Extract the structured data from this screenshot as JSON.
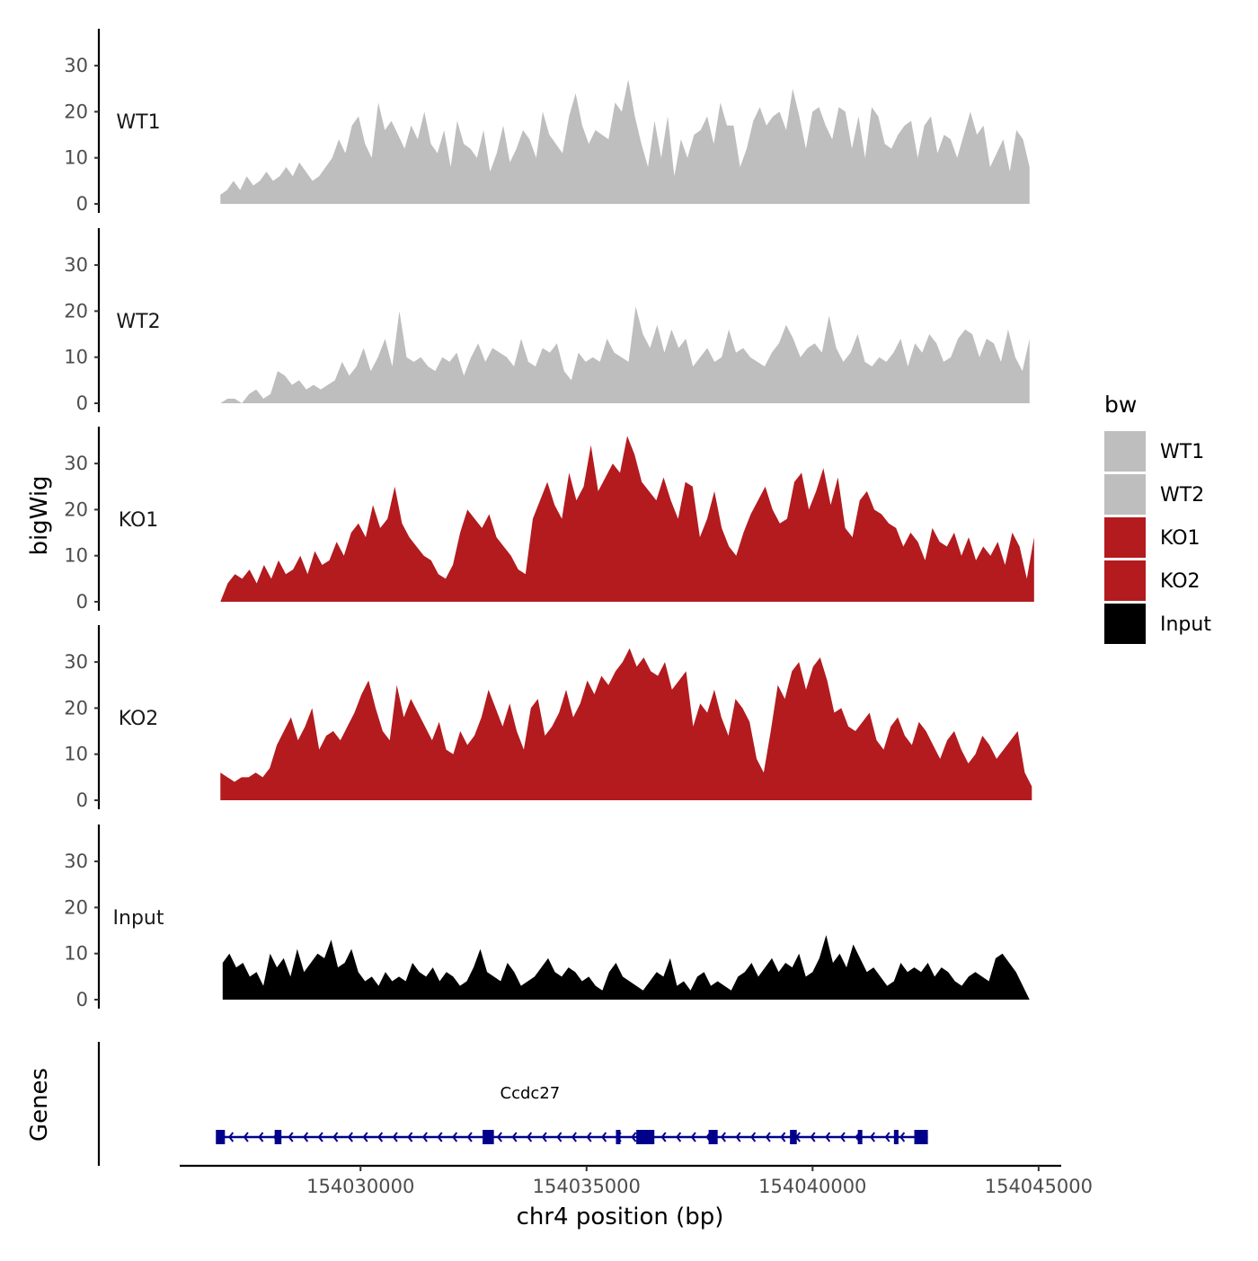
{
  "chart_data": {
    "type": "area",
    "title": "",
    "xlabel": "chr4 position (bp)",
    "ylabel": "bigWig",
    "genes_label": "Genes",
    "xlim": [
      154026000,
      154045500
    ],
    "ylim": [
      0,
      38
    ],
    "y_ticks": [
      "0",
      "10",
      "20",
      "30"
    ],
    "x_ticks": [
      {
        "value": 154030000,
        "label": "154030000"
      },
      {
        "value": 154035000,
        "label": "154035000"
      },
      {
        "value": 154040000,
        "label": "154040000"
      },
      {
        "value": 154045000,
        "label": "154045000"
      }
    ],
    "legend": {
      "title": "bw",
      "position": "right",
      "entries": [
        {
          "label": "WT1",
          "color": "#bebebe"
        },
        {
          "label": "WT2",
          "color": "#bebebe"
        },
        {
          "label": "KO1",
          "color": "#b31b1f"
        },
        {
          "label": "KO2",
          "color": "#b31b1f"
        },
        {
          "label": "Input",
          "color": "#000000"
        }
      ]
    },
    "tracks": [
      {
        "name": "WT1",
        "color": "#bebebe",
        "x_start": 154026900,
        "x_end": 154044800,
        "values": [
          2,
          3,
          5,
          3,
          6,
          4,
          5,
          7,
          5,
          6,
          8,
          6,
          9,
          7,
          5,
          6,
          8,
          10,
          14,
          11,
          17,
          19,
          13,
          10,
          22,
          16,
          18,
          15,
          12,
          17,
          14,
          20,
          13,
          11,
          16,
          8,
          18,
          13,
          12,
          10,
          16,
          7,
          11,
          17,
          9,
          12,
          16,
          14,
          10,
          20,
          15,
          13,
          11,
          19,
          24,
          17,
          13,
          16,
          15,
          14,
          22,
          20,
          27,
          19,
          13,
          8,
          18,
          10,
          19,
          6,
          14,
          10,
          15,
          16,
          19,
          13,
          22,
          17,
          17,
          8,
          12,
          18,
          21,
          17,
          19,
          20,
          16,
          25,
          19,
          12,
          20,
          21,
          17,
          14,
          21,
          20,
          12,
          19,
          10,
          21,
          19,
          13,
          12,
          15,
          17,
          18,
          10,
          17,
          19,
          11,
          15,
          14,
          10,
          15,
          20,
          15,
          17,
          8,
          11,
          14,
          7,
          16,
          14,
          8
        ],
        "mark_values": [
          3,
          6,
          7,
          8,
          7,
          5,
          17,
          19,
          6,
          24,
          19,
          18,
          24,
          21,
          20,
          26,
          27,
          12,
          5,
          20,
          16,
          26,
          21,
          21,
          20,
          10,
          21,
          19,
          19,
          18,
          19,
          17,
          18,
          16,
          5,
          8
        ]
      },
      {
        "name": "WT2",
        "color": "#bebebe",
        "x_start": 154026900,
        "x_end": 154044800,
        "values": [
          0,
          1,
          1,
          0,
          2,
          3,
          1,
          2,
          7,
          6,
          4,
          5,
          3,
          4,
          3,
          4,
          5,
          9,
          6,
          8,
          12,
          7,
          10,
          14,
          8,
          20,
          10,
          9,
          10,
          8,
          7,
          10,
          9,
          11,
          6,
          10,
          13,
          9,
          12,
          11,
          10,
          8,
          14,
          9,
          8,
          12,
          11,
          13,
          7,
          5,
          11,
          9,
          10,
          9,
          14,
          11,
          10,
          9,
          21,
          15,
          12,
          17,
          11,
          16,
          12,
          14,
          8,
          10,
          12,
          9,
          10,
          16,
          11,
          12,
          10,
          9,
          8,
          11,
          13,
          17,
          14,
          10,
          12,
          13,
          11,
          19,
          12,
          9,
          11,
          15,
          9,
          8,
          10,
          9,
          11,
          14,
          8,
          13,
          11,
          15,
          13,
          9,
          10,
          14,
          16,
          15,
          10,
          14,
          13,
          9,
          16,
          10,
          7,
          14
        ],
        "mark_values": [
          1,
          3,
          7,
          5,
          12,
          20,
          9,
          13,
          11,
          13,
          12,
          15,
          11,
          12,
          22,
          20,
          16,
          14,
          14,
          12,
          13,
          15,
          21,
          14,
          12,
          10,
          16,
          16,
          15,
          12,
          13,
          14,
          9,
          16,
          13,
          11
        ]
      },
      {
        "name": "KO1",
        "color": "#b31b1f",
        "x_start": 154026900,
        "x_end": 154044900,
        "values": [
          0,
          4,
          6,
          5,
          7,
          4,
          8,
          5,
          9,
          6,
          7,
          10,
          6,
          11,
          8,
          9,
          13,
          10,
          15,
          17,
          14,
          21,
          16,
          18,
          25,
          17,
          14,
          12,
          10,
          9,
          6,
          5,
          8,
          15,
          20,
          18,
          16,
          19,
          14,
          12,
          10,
          7,
          6,
          18,
          22,
          26,
          21,
          18,
          28,
          22,
          25,
          34,
          24,
          27,
          30,
          28,
          36,
          32,
          26,
          24,
          22,
          27,
          22,
          18,
          26,
          25,
          14,
          18,
          24,
          16,
          12,
          10,
          15,
          19,
          22,
          25,
          20,
          17,
          18,
          26,
          28,
          20,
          24,
          29,
          21,
          27,
          16,
          14,
          22,
          24,
          20,
          19,
          17,
          16,
          12,
          15,
          13,
          9,
          16,
          13,
          12,
          15,
          10,
          14,
          9,
          12,
          10,
          13,
          8,
          15,
          12,
          5,
          14
        ],
        "mark_values": [
          2,
          8,
          9,
          11,
          13,
          17,
          19,
          25,
          18,
          15,
          12,
          10,
          7,
          13,
          22,
          25,
          26,
          34,
          36,
          29,
          23,
          27,
          20,
          20,
          25,
          22,
          24,
          25,
          20,
          21,
          18,
          15,
          12,
          11,
          9,
          13
        ]
      },
      {
        "name": "KO2",
        "color": "#b31b1f",
        "x_start": 154026900,
        "x_end": 154044850,
        "values": [
          6,
          5,
          4,
          5,
          5,
          6,
          5,
          7,
          12,
          15,
          18,
          13,
          16,
          20,
          11,
          14,
          15,
          13,
          16,
          19,
          23,
          26,
          20,
          15,
          13,
          25,
          18,
          22,
          19,
          16,
          13,
          17,
          11,
          10,
          15,
          12,
          14,
          18,
          24,
          20,
          16,
          21,
          15,
          11,
          20,
          22,
          14,
          16,
          19,
          24,
          18,
          21,
          26,
          23,
          27,
          25,
          28,
          30,
          33,
          29,
          31,
          28,
          27,
          30,
          24,
          26,
          28,
          16,
          21,
          19,
          24,
          18,
          14,
          22,
          20,
          17,
          9,
          6,
          15,
          25,
          22,
          28,
          30,
          24,
          29,
          31,
          26,
          19,
          20,
          16,
          15,
          17,
          19,
          13,
          11,
          16,
          18,
          14,
          12,
          17,
          15,
          12,
          9,
          13,
          15,
          11,
          8,
          10,
          14,
          12,
          9,
          11,
          13,
          15,
          6,
          3
        ],
        "mark_values": [
          6,
          5,
          5,
          16,
          18,
          13,
          23,
          26,
          25,
          18,
          19,
          15,
          16,
          14,
          22,
          27,
          30,
          33,
          29,
          25,
          28,
          29,
          16,
          20,
          25,
          15,
          9,
          24,
          29,
          32,
          23,
          17,
          13,
          15,
          14,
          5
        ]
      },
      {
        "name": "Input",
        "color": "#000000",
        "x_start": 154026950,
        "x_end": 154044800,
        "values": [
          8,
          10,
          7,
          8,
          5,
          6,
          3,
          10,
          7,
          9,
          5,
          11,
          6,
          8,
          10,
          9,
          13,
          7,
          8,
          11,
          6,
          4,
          5,
          3,
          6,
          4,
          5,
          4,
          8,
          6,
          5,
          7,
          4,
          6,
          5,
          3,
          4,
          7,
          11,
          6,
          5,
          4,
          8,
          6,
          3,
          4,
          5,
          7,
          9,
          6,
          5,
          7,
          6,
          4,
          5,
          3,
          2,
          6,
          8,
          5,
          4,
          3,
          2,
          4,
          6,
          5,
          9,
          3,
          4,
          2,
          5,
          6,
          3,
          4,
          3,
          2,
          5,
          6,
          8,
          5,
          7,
          9,
          6,
          8,
          7,
          10,
          5,
          6,
          9,
          14,
          8,
          10,
          7,
          12,
          9,
          6,
          7,
          5,
          3,
          4,
          8,
          6,
          7,
          6,
          8,
          5,
          7,
          6,
          4,
          3,
          5,
          6,
          5,
          4,
          9,
          10,
          8,
          6,
          3,
          0
        ]
      }
    ],
    "gene": {
      "name": "Ccdc27",
      "start": 154026850,
      "end": 154042550,
      "strand": "-",
      "color": "#00008b",
      "exons": [
        [
          154026800,
          154027000
        ],
        [
          154028100,
          154028250
        ],
        [
          154032700,
          154032950
        ],
        [
          154035650,
          154035750
        ],
        [
          154036100,
          154036500
        ],
        [
          154037700,
          154037900
        ],
        [
          154039500,
          154039650
        ],
        [
          154041000,
          154041100
        ],
        [
          154041800,
          154041900
        ],
        [
          154042250,
          154042550
        ]
      ]
    }
  }
}
